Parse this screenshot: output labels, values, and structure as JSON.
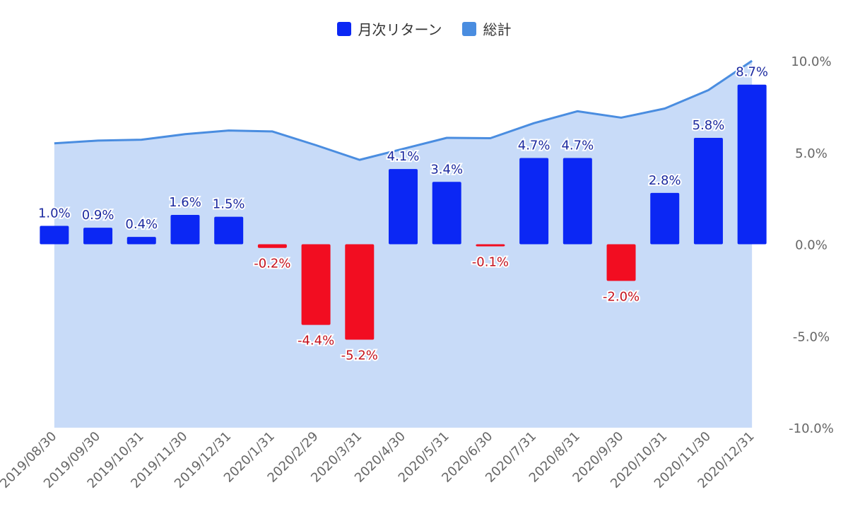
{
  "chart_data": {
    "type": "bar",
    "categories": [
      "2019/08/30",
      "2019/09/30",
      "2019/10/31",
      "2019/11/30",
      "2019/12/31",
      "2020/1/31",
      "2020/2/29",
      "2020/3/31",
      "2020/4/30",
      "2020/5/31",
      "2020/6/30",
      "2020/7/31",
      "2020/8/31",
      "2020/9/30",
      "2020/10/31",
      "2020/11/30",
      "2020/12/31"
    ],
    "series": [
      {
        "name": "月次リターン",
        "type": "bar",
        "values": [
          1.0,
          0.9,
          0.4,
          1.6,
          1.5,
          -0.2,
          -4.4,
          -5.2,
          4.1,
          3.4,
          -0.1,
          4.7,
          4.7,
          -2.0,
          2.8,
          5.8,
          8.7
        ],
        "labels": [
          "1.0%",
          "0.9%",
          "0.4%",
          "1.6%",
          "1.5%",
          "-0.2%",
          "-4.4%",
          "-5.2%",
          "4.1%",
          "3.4%",
          "-0.1%",
          "4.7%",
          "4.7%",
          "-2.0%",
          "2.8%",
          "5.8%",
          "8.7%"
        ]
      },
      {
        "name": "総計",
        "type": "area",
        "values": [
          5.5,
          5.65,
          5.7,
          6.0,
          6.2,
          6.15,
          5.4,
          4.6,
          5.2,
          5.8,
          5.78,
          6.6,
          7.25,
          6.9,
          7.4,
          8.4,
          10.0
        ]
      }
    ],
    "y_axis": {
      "position": "right",
      "ylim": [
        -10,
        10
      ],
      "ticks": [
        10,
        5,
        0,
        -5,
        -10
      ],
      "tick_labels": [
        "10.0%",
        "5.0%",
        "0.0%",
        "-5.0%",
        "-10.0%"
      ]
    },
    "grid": false,
    "legend_position": "top-center",
    "colors": {
      "positive_bar": "#0b27f4",
      "negative_bar": "#f20d21",
      "area_fill": "#c8dbf8",
      "area_line": "#4a8de0",
      "positive_label": "#1c2aa0",
      "negative_label": "#c4121e",
      "axis_text": "#666666"
    }
  }
}
